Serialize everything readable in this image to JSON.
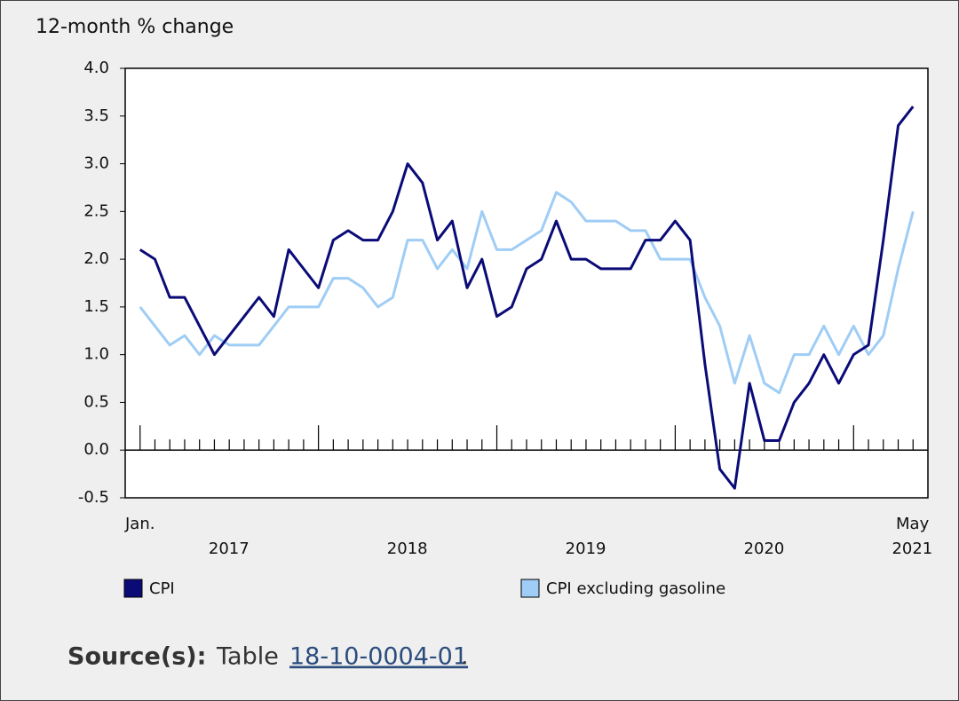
{
  "chart_data": {
    "type": "line",
    "title": "12-month % change",
    "categories": [
      "Jan.",
      null,
      null,
      null,
      null,
      null,
      null,
      null,
      null,
      null,
      null,
      null,
      null,
      null,
      null,
      null,
      null,
      null,
      null,
      null,
      null,
      null,
      null,
      null,
      null,
      null,
      null,
      null,
      null,
      null,
      null,
      null,
      null,
      null,
      null,
      null,
      null,
      null,
      null,
      null,
      null,
      null,
      null,
      null,
      null,
      null,
      null,
      null,
      null,
      null,
      null,
      null,
      "May"
    ],
    "year_labels": [
      "2017",
      "2018",
      "2019",
      "2020",
      "2021"
    ],
    "series": [
      {
        "name": "CPI",
        "color": "#0b0b78",
        "values": [
          2.1,
          2.0,
          1.6,
          1.6,
          1.3,
          1.0,
          1.2,
          1.4,
          1.6,
          1.4,
          2.1,
          1.9,
          1.7,
          2.2,
          2.3,
          2.2,
          2.2,
          2.5,
          3.0,
          2.8,
          2.2,
          2.4,
          1.7,
          2.0,
          1.4,
          1.5,
          1.9,
          2.0,
          2.4,
          2.0,
          2.0,
          1.9,
          1.9,
          1.9,
          2.2,
          2.2,
          2.4,
          2.2,
          0.9,
          -0.2,
          -0.4,
          0.7,
          0.1,
          0.1,
          0.5,
          0.7,
          1.0,
          0.7,
          1.0,
          1.1,
          2.2,
          3.4,
          3.6
        ]
      },
      {
        "name": "CPI excluding gasoline",
        "color": "#9fcdf5",
        "values": [
          1.5,
          1.3,
          1.1,
          1.2,
          1.0,
          1.2,
          1.1,
          1.1,
          1.1,
          1.3,
          1.5,
          1.5,
          1.5,
          1.8,
          1.8,
          1.7,
          1.5,
          1.6,
          2.2,
          2.2,
          1.9,
          2.1,
          1.9,
          2.5,
          2.1,
          2.1,
          2.2,
          2.3,
          2.7,
          2.6,
          2.4,
          2.4,
          2.4,
          2.3,
          2.3,
          2.0,
          2.0,
          2.0,
          1.6,
          1.3,
          0.7,
          1.2,
          0.7,
          0.6,
          1.0,
          1.0,
          1.3,
          1.0,
          1.3,
          1.0,
          1.2,
          1.9,
          2.5
        ]
      }
    ],
    "ylim": [
      -0.5,
      4.0
    ],
    "yticks": [
      -0.5,
      0.5,
      {
        "value": 0,
        "label": "0.0"
      },
      {
        "value": 1,
        "label": "1.0"
      },
      1.5,
      {
        "value": 2,
        "label": "2.0"
      },
      2.5,
      {
        "value": 3,
        "label": "3.0"
      },
      3.5,
      {
        "value": 4,
        "label": "4.0"
      }
    ],
    "legend": "bottom",
    "source_label": "Source(s):",
    "source_text": "Table",
    "source_link": "18-10-0004-01",
    "source_end": "."
  }
}
